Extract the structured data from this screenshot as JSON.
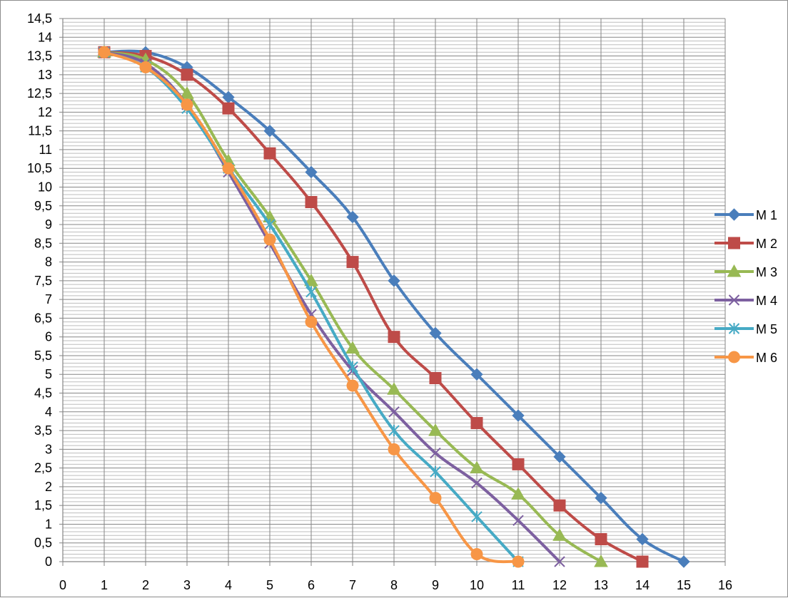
{
  "chart_data": {
    "type": "line",
    "title": "",
    "xlabel": "",
    "ylabel": "",
    "xlim": [
      0,
      16
    ],
    "ylim": [
      0,
      14.5
    ],
    "x_ticks": [
      "0",
      "1",
      "2",
      "3",
      "4",
      "5",
      "6",
      "7",
      "8",
      "9",
      "10",
      "11",
      "12",
      "13",
      "14",
      "15",
      "16"
    ],
    "y_ticks": [
      "0",
      "0,5",
      "1",
      "1,5",
      "2",
      "2,5",
      "3",
      "3,5",
      "4",
      "4,5",
      "5",
      "5,5",
      "6",
      "6,5",
      "7",
      "7,5",
      "8",
      "8,5",
      "9",
      "9,5",
      "10",
      "10,5",
      "11",
      "11,5",
      "12",
      "12,5",
      "13",
      "13,5",
      "14",
      "14,5"
    ],
    "grid": true,
    "minor_grid": true,
    "legend_position": "right",
    "smooth_lines": true,
    "series": [
      {
        "name": "M 1",
        "color": "#4a7ebb",
        "marker": "diamond",
        "x": [
          1,
          2,
          3,
          4,
          5,
          6,
          7,
          8,
          9,
          10,
          11,
          12,
          13,
          14,
          15
        ],
        "y": [
          13.6,
          13.6,
          13.2,
          12.4,
          11.5,
          10.4,
          9.2,
          7.5,
          6.1,
          5.0,
          3.9,
          2.8,
          1.7,
          0.6,
          0
        ]
      },
      {
        "name": "M 2",
        "color": "#be4b48",
        "marker": "square",
        "x": [
          1,
          2,
          3,
          4,
          5,
          6,
          7,
          8,
          9,
          10,
          11,
          12,
          13,
          14
        ],
        "y": [
          13.6,
          13.5,
          13.0,
          12.1,
          10.9,
          9.6,
          8.0,
          6.0,
          4.9,
          3.7,
          2.6,
          1.5,
          0.6,
          0
        ]
      },
      {
        "name": "M 3",
        "color": "#98b954",
        "marker": "triangle",
        "x": [
          1,
          2,
          3,
          4,
          5,
          6,
          7,
          8,
          9,
          10,
          11,
          12,
          13
        ],
        "y": [
          13.6,
          13.4,
          12.5,
          10.7,
          9.2,
          7.5,
          5.7,
          4.6,
          3.5,
          2.5,
          1.8,
          0.7,
          0
        ]
      },
      {
        "name": "M 4",
        "color": "#7d60a0",
        "marker": "x",
        "x": [
          1,
          2,
          3,
          4,
          5,
          6,
          7,
          8,
          9,
          10,
          11,
          12
        ],
        "y": [
          13.6,
          13.3,
          12.2,
          10.4,
          8.5,
          6.6,
          5.1,
          4.0,
          2.9,
          2.1,
          1.1,
          0
        ]
      },
      {
        "name": "M 5",
        "color": "#46aac5",
        "marker": "star",
        "x": [
          1,
          2,
          3,
          4,
          5,
          6,
          7,
          8,
          9,
          10,
          11
        ],
        "y": [
          13.6,
          13.2,
          12.1,
          10.5,
          9.0,
          7.2,
          5.2,
          3.5,
          2.4,
          1.2,
          0
        ]
      },
      {
        "name": "M 6",
        "color": "#f79646",
        "marker": "circle",
        "x": [
          1,
          2,
          3,
          4,
          5,
          6,
          7,
          8,
          9,
          10,
          11
        ],
        "y": [
          13.6,
          13.2,
          12.2,
          10.5,
          8.6,
          6.4,
          4.7,
          3.0,
          1.7,
          0.2,
          0
        ]
      }
    ]
  }
}
